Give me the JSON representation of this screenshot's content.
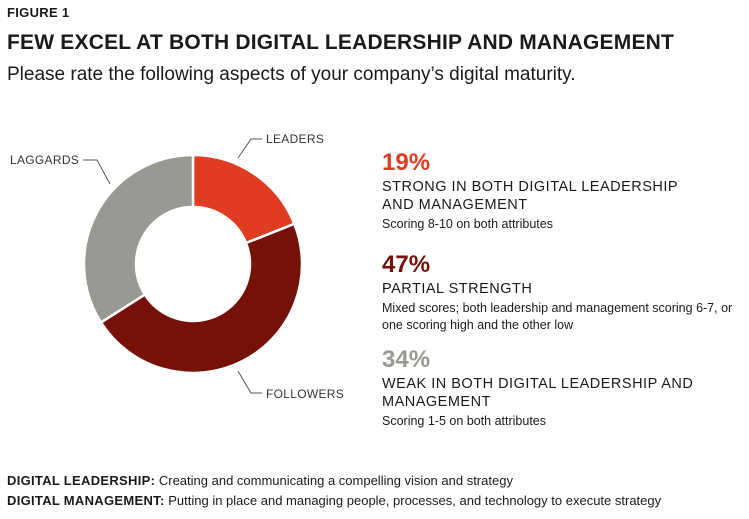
{
  "figure_label": "FIGURE 1",
  "title": "FEW EXCEL AT BOTH DIGITAL LEADERSHIP AND MANAGEMENT",
  "subtitle": "Please rate the following aspects of your company’s digital maturity.",
  "chart_data": {
    "type": "pie",
    "style": "donut",
    "start_angle": "12 o'clock, clockwise",
    "slices": [
      {
        "label": "LEADERS",
        "value": 19,
        "color": "#e03c21"
      },
      {
        "label": "FOLLOWERS",
        "value": 47,
        "color": "#761108"
      },
      {
        "label": "LAGGARDS",
        "value": 34,
        "color": "#999893"
      }
    ]
  },
  "stats": [
    {
      "pct": "19%",
      "color": "#e03c21",
      "heading": "STRONG IN BOTH DIGITAL LEADERSHIP AND MANAGEMENT",
      "desc": "Scoring 8-10 on both attributes"
    },
    {
      "pct": "47%",
      "color": "#761108",
      "heading": "PARTIAL STRENGTH",
      "desc": "Mixed scores; both leadership and management scoring 6-7, or one scoring high and the other low"
    },
    {
      "pct": "34%",
      "color": "#999893",
      "heading": "WEAK IN BOTH DIGITAL LEADERSHIP AND MANAGEMENT",
      "desc": "Scoring 1-5 on both attributes"
    }
  ],
  "footer": {
    "leadership_term": "DIGITAL LEADERSHIP:",
    "leadership_def": "Creating and communicating a compelling vision and strategy",
    "management_term": "DIGITAL MANAGEMENT:",
    "management_def": "Putting in place and managing people, processes, and technology to execute strategy"
  }
}
